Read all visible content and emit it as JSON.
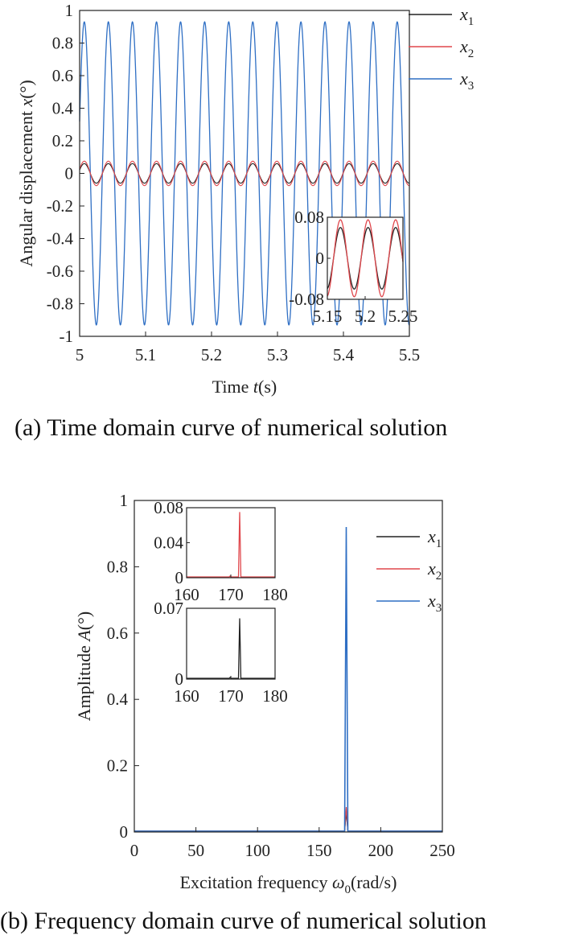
{
  "captions": {
    "a": "(a) Time domain curve of numerical solution",
    "b": "(b) Frequency domain curve of numerical solution"
  },
  "colors": {
    "x1": "#222222",
    "x2": "#e0474c",
    "x3": "#2f6fc4",
    "axis": "#222222"
  },
  "chart_data": [
    {
      "id": "time",
      "type": "line",
      "xlabel_pre": "Time ",
      "xlabel_var": "t",
      "xlabel_post": "(s)",
      "ylabel_pre": "Angular displacement ",
      "ylabel_var": "x",
      "ylabel_post": "(°)",
      "xlim": [
        5,
        5.5
      ],
      "ylim": [
        -1,
        1
      ],
      "xticks": [
        5,
        5.1,
        5.2,
        5.3,
        5.4,
        5.5
      ],
      "xtick_labels": [
        "5",
        "5.1",
        "5.2",
        "5.3",
        "5.4",
        "5.5"
      ],
      "yticks": [
        -1,
        -0.8,
        -0.6,
        -0.4,
        -0.2,
        0,
        0.2,
        0.4,
        0.6,
        0.8,
        1
      ],
      "ytick_labels": [
        "-1",
        "-0.8",
        "-0.6",
        "-0.4",
        "-0.2",
        "0",
        "0.2",
        "0.4",
        "0.6",
        "0.8",
        "1"
      ],
      "legend_position": "top-right",
      "series": [
        {
          "name": "x",
          "sub": "1",
          "key": "x1",
          "amplitude": 0.06,
          "frequency_hz": 27.4,
          "phase_rad": 0.0
        },
        {
          "name": "x",
          "sub": "2",
          "key": "x2",
          "amplitude": 0.075,
          "frequency_hz": 27.4,
          "phase_rad": 0.0
        },
        {
          "name": "x",
          "sub": "3",
          "key": "x3",
          "amplitude": 0.93,
          "frequency_hz": 27.4,
          "phase_rad": 0.0
        }
      ],
      "inset": {
        "xlim": [
          5.15,
          5.25
        ],
        "ylim": [
          -0.08,
          0.08
        ],
        "xticks": [
          5.15,
          5.2,
          5.25
        ],
        "xtick_labels": [
          "5.15",
          "5.2",
          "5.25"
        ],
        "yticks": [
          -0.08,
          0,
          0.08
        ],
        "ytick_labels": [
          "-0.08",
          "0",
          "0.08"
        ],
        "series": [
          "x1",
          "x2"
        ]
      }
    },
    {
      "id": "freq",
      "type": "line",
      "xlabel_pre": "Excitation frequency ",
      "xlabel_var": "ω",
      "xlabel_sub": "0",
      "xlabel_post": "(rad/s)",
      "ylabel_pre": "Amplitude ",
      "ylabel_var": "A",
      "ylabel_post": "(°)",
      "xlim": [
        0,
        250
      ],
      "ylim": [
        0,
        1
      ],
      "xticks": [
        0,
        50,
        100,
        150,
        200,
        250
      ],
      "xtick_labels": [
        "0",
        "50",
        "100",
        "150",
        "200",
        "250"
      ],
      "yticks": [
        0,
        0.2,
        0.4,
        0.6,
        0.8,
        1
      ],
      "ytick_labels": [
        "0",
        "0.2",
        "0.4",
        "0.6",
        "0.8",
        "1"
      ],
      "legend_position": "top-right",
      "peak_x": 172,
      "series": [
        {
          "name": "x",
          "sub": "1",
          "key": "x1",
          "peak": 0.06
        },
        {
          "name": "x",
          "sub": "2",
          "key": "x2",
          "peak": 0.075
        },
        {
          "name": "x",
          "sub": "3",
          "key": "x3",
          "peak": 0.92
        }
      ],
      "insets": [
        {
          "series": "x2",
          "xlim": [
            160,
            180
          ],
          "ylim": [
            0,
            0.08
          ],
          "xticks": [
            160,
            170,
            180
          ],
          "xtick_labels": [
            "160",
            "170",
            "180"
          ],
          "yticks": [
            0,
            0.04,
            0.08
          ],
          "ytick_labels": [
            "0",
            "0.04",
            "0.08"
          ]
        },
        {
          "series": "x1",
          "xlim": [
            160,
            180
          ],
          "ylim": [
            0,
            0.07
          ],
          "xticks": [
            160,
            170,
            180
          ],
          "xtick_labels": [
            "160",
            "170",
            "180"
          ],
          "yticks": [
            0,
            0.07
          ],
          "ytick_labels": [
            "0",
            "0.07"
          ]
        }
      ]
    }
  ]
}
